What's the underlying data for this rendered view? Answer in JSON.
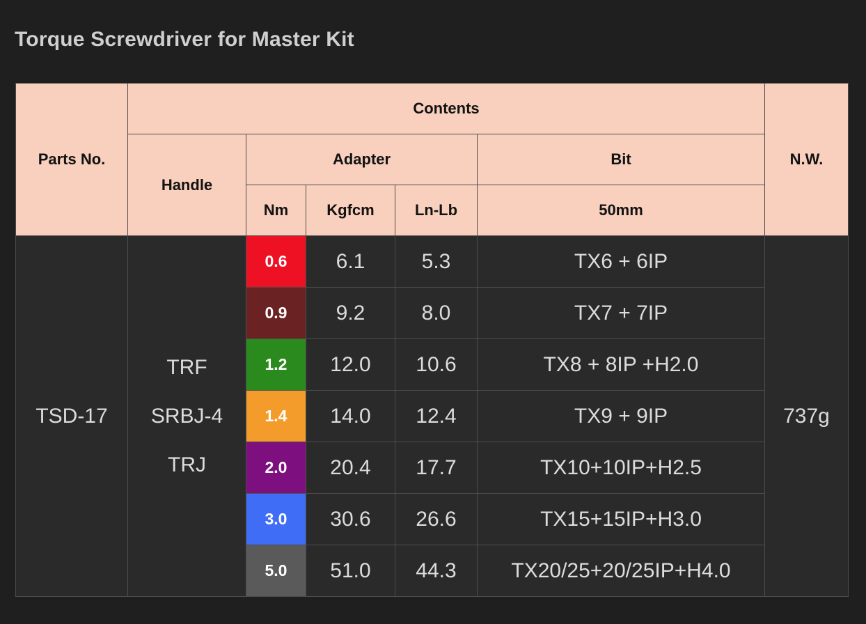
{
  "title": "Torque Screwdriver for Master Kit",
  "table": {
    "headers": {
      "parts_no": "Parts No.",
      "contents": "Contents",
      "nw": "N.W.",
      "handle": "Handle",
      "adapter": "Adapter",
      "bit": "Bit",
      "nm": "Nm",
      "kgfcm": "Kgfcm",
      "lnlb": "Ln-Lb",
      "bit_size": "50mm"
    },
    "part_no": "TSD-17",
    "handles": [
      "TRF",
      "SRBJ-4",
      "TRJ"
    ],
    "nw": "737g",
    "rows": [
      {
        "nm": "0.6",
        "nm_color": "#ee1124",
        "kgfcm": "6.1",
        "lnlb": "5.3",
        "bit": "TX6 + 6IP"
      },
      {
        "nm": "0.9",
        "nm_color": "#6a2222",
        "kgfcm": "9.2",
        "lnlb": "8.0",
        "bit": "TX7 + 7IP"
      },
      {
        "nm": "1.2",
        "nm_color": "#2b8a1d",
        "kgfcm": "12.0",
        "lnlb": "10.6",
        "bit": "TX8 + 8IP +H2.0"
      },
      {
        "nm": "1.4",
        "nm_color": "#f39c2b",
        "kgfcm": "14.0",
        "lnlb": "12.4",
        "bit": "TX9 + 9IP"
      },
      {
        "nm": "2.0",
        "nm_color": "#7e0f7f",
        "kgfcm": "20.4",
        "lnlb": "17.7",
        "bit": "TX10+10IP+H2.5"
      },
      {
        "nm": "3.0",
        "nm_color": "#3f6df5",
        "kgfcm": "30.6",
        "lnlb": "26.6",
        "bit": "TX15+15IP+H3.0"
      },
      {
        "nm": "5.0",
        "nm_color": "#5a5a5a",
        "kgfcm": "51.0",
        "lnlb": "44.3",
        "bit": "TX20/25+20/25IP+H4.0"
      }
    ]
  },
  "colors": {
    "background": "#1f1f1f",
    "header_bg": "#f8d0bd",
    "cell_bg": "#2a2a2a",
    "border": "#4d4d4d"
  }
}
